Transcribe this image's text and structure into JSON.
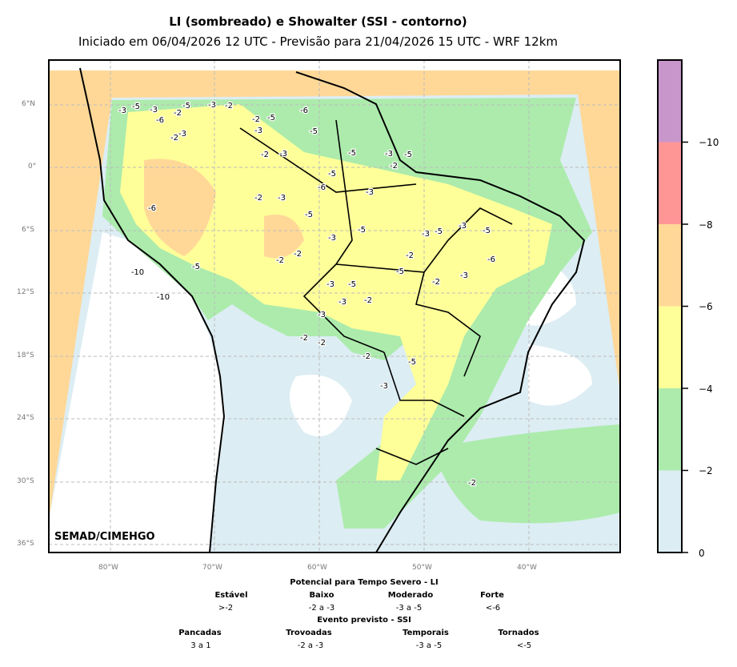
{
  "title": "LI (sombreado) e Showalter (SSI - contorno)",
  "subtitle": "Iniciado em 06/04/2026 12 UTC - Previsão para 21/04/2026 15 UTC - WRF 12km",
  "credit": "SEMAD/CIMEHGO",
  "lat_ticks": [
    "6°N",
    "0°",
    "6°S",
    "12°S",
    "18°S",
    "24°S",
    "30°S",
    "36°S"
  ],
  "lon_ticks": [
    "80°W",
    "70°W",
    "60°W",
    "50°W",
    "40°W"
  ],
  "colorbar": {
    "ticks": [
      "−10",
      "−8",
      "−6",
      "−4",
      "−2",
      "0"
    ],
    "colors": [
      "#c996cc",
      "#ff9696",
      "#ffd898",
      "#ffff99",
      "#acebac",
      "#dcedf3"
    ]
  },
  "legend": {
    "li_title": "Potencial para Tempo Severo - LI",
    "li": [
      {
        "name": "Estável",
        "range": ">-2"
      },
      {
        "name": "Baixo",
        "range": "-2 a -3"
      },
      {
        "name": "Moderado",
        "range": "-3 a -5"
      },
      {
        "name": "Forte",
        "range": "<-6"
      }
    ],
    "ssi_title": "Evento previsto - SSI",
    "ssi": [
      {
        "name": "Pancadas",
        "range": "3 a 1"
      },
      {
        "name": "Trovoadas",
        "range": "-2 a -3"
      },
      {
        "name": "Temporais",
        "range": "-3 a -5"
      },
      {
        "name": "Tornados",
        "range": "<-5"
      }
    ]
  },
  "contour_labels": [
    "-3",
    "-5",
    "-3",
    "-2",
    "-6",
    "-3",
    "-2",
    "-5",
    "-3",
    "-2",
    "-3",
    "-2",
    "-5",
    "-6",
    "-5",
    "-3",
    "-2",
    "-5",
    "-3",
    "-5",
    "-2",
    "-3",
    "-5",
    "-6",
    "-5",
    "-3",
    "-2",
    "-10",
    "-10",
    "-6",
    "-5",
    "-3",
    "-5",
    "-2",
    "-3",
    "-5",
    "-3",
    "-5",
    "-6",
    "-3",
    "-2",
    "-5",
    "-3",
    "-5",
    "-2",
    "-3",
    "-2",
    "-2",
    "-3",
    "-2",
    "-2",
    "-2",
    "-3",
    "-5",
    "-2"
  ]
}
